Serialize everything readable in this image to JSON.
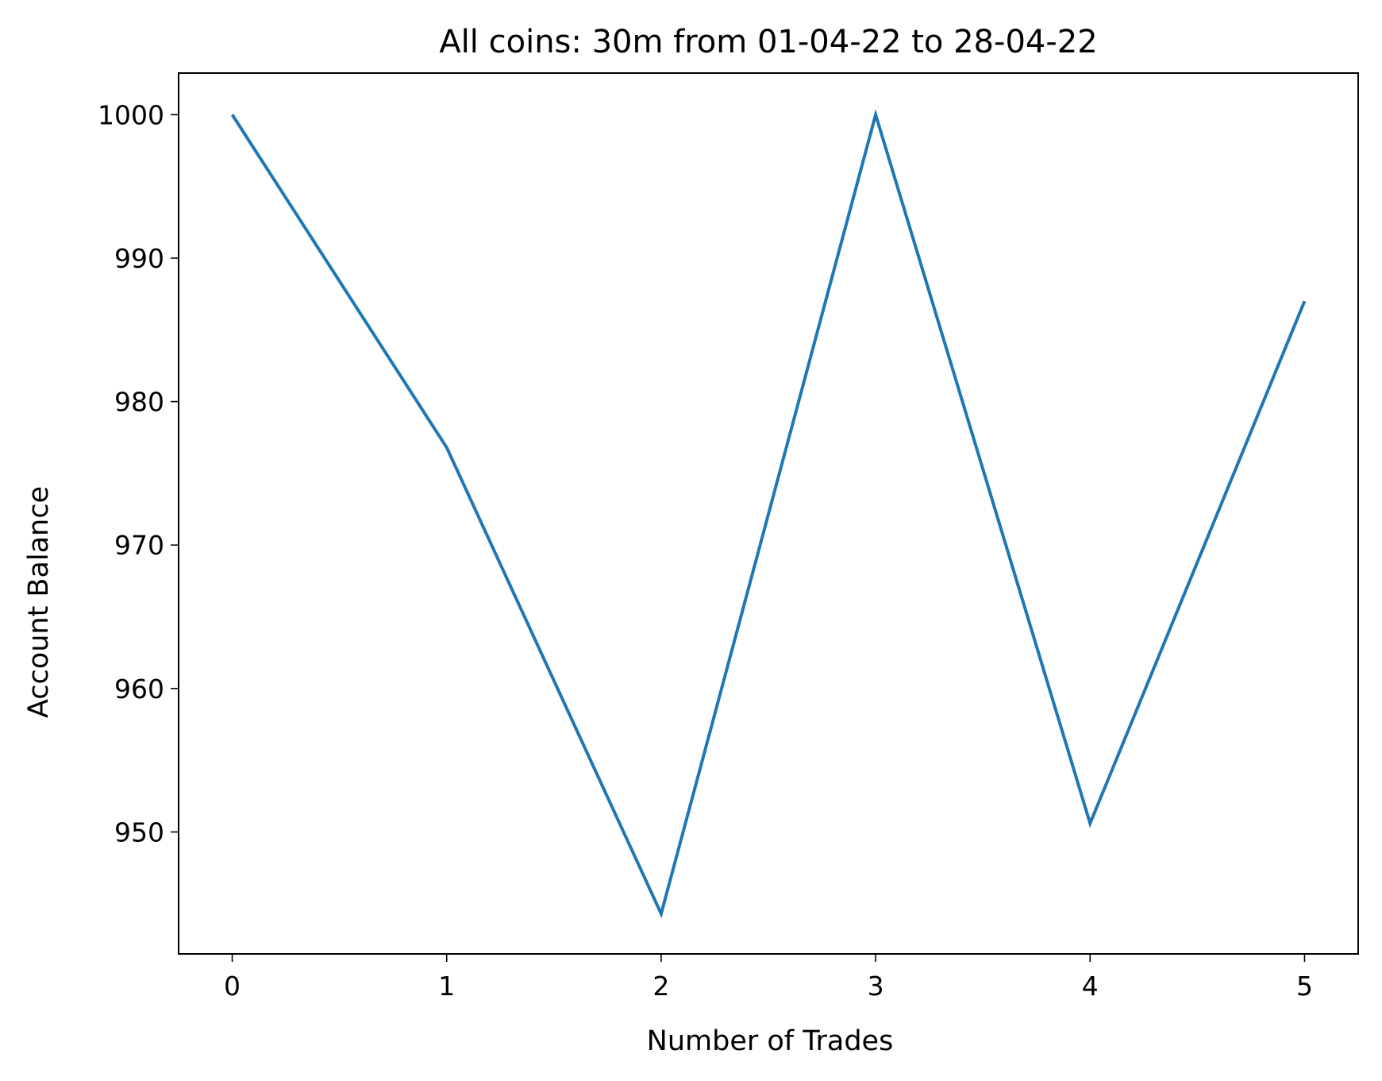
{
  "chart_data": {
    "type": "line",
    "title": "All coins: 30m from 01-04-22 to 28-04-22",
    "xlabel": "Number of Trades",
    "ylabel": "Account Balance",
    "x": [
      0,
      1,
      2,
      3,
      4,
      5
    ],
    "series": [
      {
        "values": [
          1000.0,
          976.8,
          944.3,
          1000.0,
          950.6,
          987.0
        ]
      }
    ],
    "xlim": [
      -0.25,
      5.25
    ],
    "ylim": [
      941.5,
      1002.9
    ],
    "xticks": [
      0,
      1,
      2,
      3,
      4,
      5
    ],
    "yticks": [
      950,
      960,
      970,
      980,
      990,
      1000
    ],
    "grid": false,
    "line_color": "#1f77b4"
  }
}
